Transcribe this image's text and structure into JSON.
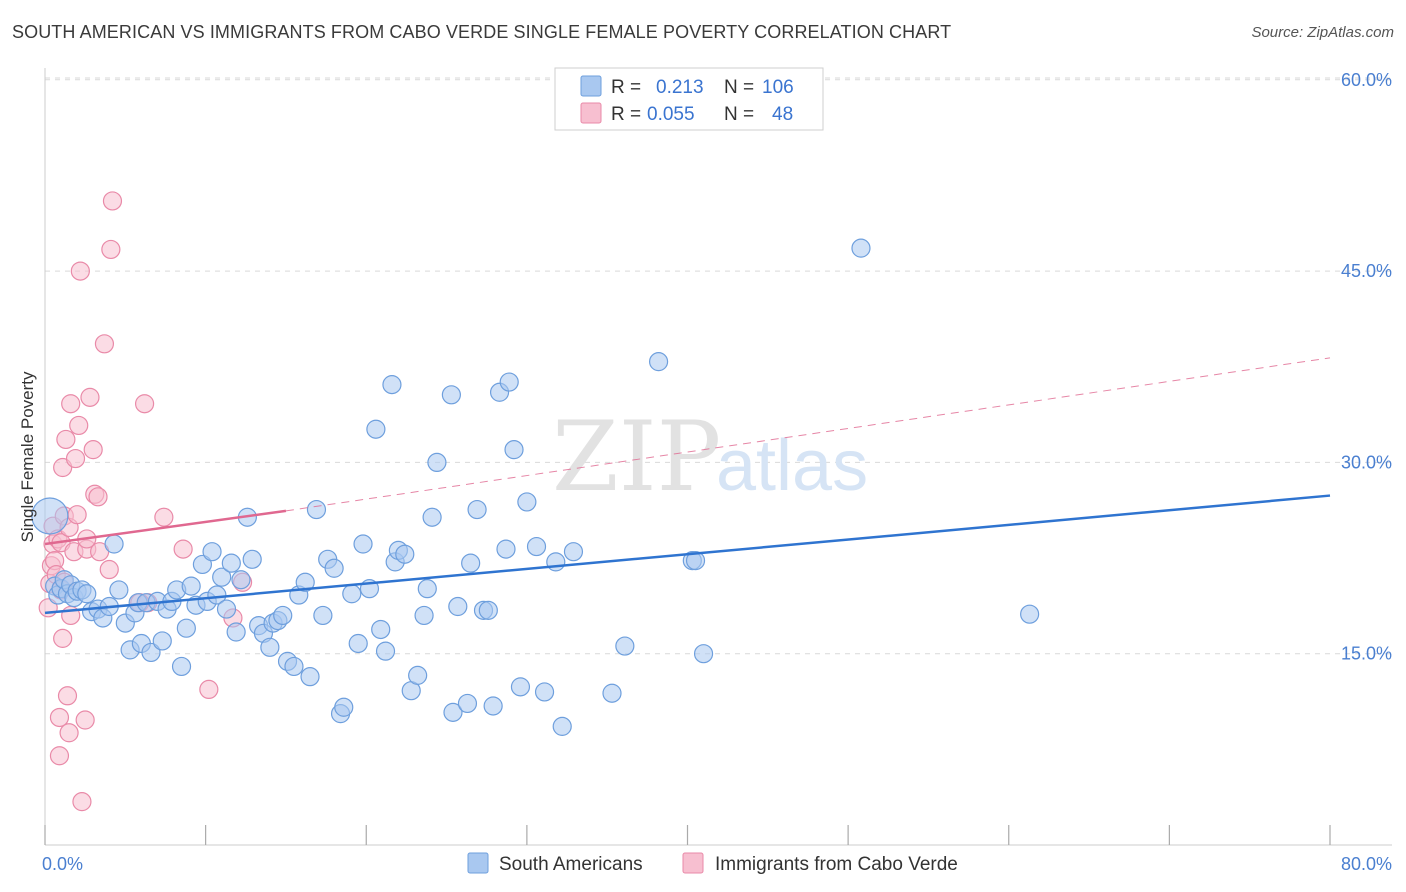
{
  "header": {
    "title": "SOUTH AMERICAN VS IMMIGRANTS FROM CABO VERDE SINGLE FEMALE POVERTY CORRELATION CHART",
    "source": "Source: ZipAtlas.com"
  },
  "watermark": {
    "zip": "ZIP",
    "atlas": "atlas"
  },
  "legend": {
    "r_label": "R =",
    "n_label": "N =",
    "rows": [
      {
        "r": "0.213",
        "n": "106"
      },
      {
        "r": "0.055",
        "n": "48"
      }
    ]
  },
  "colors": {
    "blue_fill": "#a9c8f0",
    "blue_stroke": "#6e9fdd",
    "blue_line": "#2f74d0",
    "pink_fill": "#f7bfd0",
    "pink_stroke": "#e98aa8",
    "pink_line": "#e06890",
    "grid": "#d9d9d9",
    "tick_text": "#4a7fd0"
  },
  "chart_data": {
    "type": "scatter",
    "title": "SOUTH AMERICAN VS IMMIGRANTS FROM CABO VERDE SINGLE FEMALE POVERTY CORRELATION CHART",
    "ylabel": "Single Female Poverty",
    "xlabel": "",
    "xlim": [
      0,
      80
    ],
    "ylim": [
      0,
      62
    ],
    "x_tick_labels": [
      "0.0%",
      "80.0%"
    ],
    "y_ticks": [
      15,
      30,
      45,
      60
    ],
    "y_tick_labels": [
      "15.0%",
      "30.0%",
      "45.0%",
      "60.0%"
    ],
    "grid": true,
    "legend_position": "top-center",
    "series": [
      {
        "name": "South Americans",
        "r": 0.213,
        "n": 106,
        "trend": {
          "x": [
            0,
            80
          ],
          "y": [
            18.2,
            27.4
          ],
          "style": "solid"
        },
        "points": [
          [
            0.3,
            25.8
          ],
          [
            0.6,
            20.3
          ],
          [
            0.8,
            19.6
          ],
          [
            1.0,
            20.1
          ],
          [
            1.2,
            20.8
          ],
          [
            1.4,
            19.7
          ],
          [
            1.6,
            20.4
          ],
          [
            1.8,
            19.4
          ],
          [
            2.0,
            19.9
          ],
          [
            2.3,
            20.0
          ],
          [
            2.6,
            19.7
          ],
          [
            2.9,
            18.3
          ],
          [
            3.3,
            18.5
          ],
          [
            3.6,
            17.8
          ],
          [
            4.0,
            18.7
          ],
          [
            4.3,
            23.6
          ],
          [
            4.6,
            20.0
          ],
          [
            5.0,
            17.4
          ],
          [
            5.3,
            15.3
          ],
          [
            5.6,
            18.2
          ],
          [
            5.8,
            19.0
          ],
          [
            6.0,
            15.8
          ],
          [
            6.3,
            19.0
          ],
          [
            6.6,
            15.1
          ],
          [
            7.0,
            19.1
          ],
          [
            7.3,
            16.0
          ],
          [
            7.6,
            18.5
          ],
          [
            7.9,
            19.1
          ],
          [
            8.2,
            20.0
          ],
          [
            8.5,
            14.0
          ],
          [
            8.8,
            17.0
          ],
          [
            9.1,
            20.3
          ],
          [
            9.4,
            18.8
          ],
          [
            9.8,
            22.0
          ],
          [
            10.1,
            19.1
          ],
          [
            10.4,
            23.0
          ],
          [
            10.7,
            19.6
          ],
          [
            11.0,
            21.0
          ],
          [
            11.3,
            18.5
          ],
          [
            11.6,
            22.1
          ],
          [
            11.9,
            16.7
          ],
          [
            12.2,
            20.8
          ],
          [
            12.6,
            25.7
          ],
          [
            12.9,
            22.4
          ],
          [
            13.3,
            17.2
          ],
          [
            13.6,
            16.6
          ],
          [
            14.0,
            15.5
          ],
          [
            14.2,
            17.4
          ],
          [
            14.5,
            17.6
          ],
          [
            14.8,
            18.0
          ],
          [
            15.1,
            14.4
          ],
          [
            15.5,
            14.0
          ],
          [
            15.8,
            19.6
          ],
          [
            16.2,
            20.6
          ],
          [
            16.5,
            13.2
          ],
          [
            16.9,
            26.3
          ],
          [
            17.3,
            18.0
          ],
          [
            17.6,
            22.4
          ],
          [
            18.0,
            21.7
          ],
          [
            18.4,
            10.3
          ],
          [
            18.6,
            10.8
          ],
          [
            19.1,
            19.7
          ],
          [
            19.5,
            15.8
          ],
          [
            19.8,
            23.6
          ],
          [
            20.2,
            20.1
          ],
          [
            20.6,
            32.6
          ],
          [
            20.9,
            16.9
          ],
          [
            21.2,
            15.2
          ],
          [
            21.6,
            36.1
          ],
          [
            21.8,
            22.2
          ],
          [
            22.0,
            23.1
          ],
          [
            22.4,
            22.8
          ],
          [
            22.8,
            12.1
          ],
          [
            23.2,
            13.3
          ],
          [
            23.6,
            18.0
          ],
          [
            23.8,
            20.1
          ],
          [
            24.1,
            25.7
          ],
          [
            24.4,
            30.0
          ],
          [
            25.3,
            35.3
          ],
          [
            25.4,
            10.4
          ],
          [
            25.7,
            18.7
          ],
          [
            26.3,
            11.1
          ],
          [
            26.5,
            22.1
          ],
          [
            26.9,
            26.3
          ],
          [
            27.3,
            18.4
          ],
          [
            27.6,
            18.4
          ],
          [
            27.9,
            10.9
          ],
          [
            28.3,
            35.5
          ],
          [
            28.7,
            23.2
          ],
          [
            28.9,
            36.3
          ],
          [
            29.2,
            31.0
          ],
          [
            29.6,
            12.4
          ],
          [
            30.0,
            26.9
          ],
          [
            30.6,
            23.4
          ],
          [
            31.1,
            12.0
          ],
          [
            31.8,
            22.2
          ],
          [
            32.2,
            9.3
          ],
          [
            32.9,
            23.0
          ],
          [
            35.3,
            11.9
          ],
          [
            36.1,
            15.6
          ],
          [
            38.2,
            37.9
          ],
          [
            40.3,
            22.3
          ],
          [
            40.5,
            22.3
          ],
          [
            41.0,
            15.0
          ],
          [
            50.8,
            46.8
          ],
          [
            61.3,
            18.1
          ]
        ]
      },
      {
        "name": "Immigrants from Cabo Verde",
        "r": 0.055,
        "n": 48,
        "trend": {
          "x": [
            0,
            15
          ],
          "y": [
            23.6,
            26.2
          ],
          "style": "solid",
          "dashed_extension": {
            "x": [
              15,
              80
            ],
            "y": [
              26.2,
              38.2
            ]
          }
        },
        "points": [
          [
            0.2,
            18.6
          ],
          [
            0.3,
            20.5
          ],
          [
            0.4,
            21.9
          ],
          [
            0.5,
            23.6
          ],
          [
            0.5,
            25.0
          ],
          [
            0.6,
            22.3
          ],
          [
            0.7,
            21.2
          ],
          [
            0.8,
            24.0
          ],
          [
            0.9,
            10.0
          ],
          [
            0.9,
            7.0
          ],
          [
            1.0,
            23.7
          ],
          [
            1.1,
            16.2
          ],
          [
            1.1,
            29.6
          ],
          [
            1.2,
            25.8
          ],
          [
            1.2,
            20.6
          ],
          [
            1.3,
            31.8
          ],
          [
            1.4,
            11.7
          ],
          [
            1.5,
            8.8
          ],
          [
            1.5,
            24.9
          ],
          [
            1.6,
            34.6
          ],
          [
            1.6,
            18.0
          ],
          [
            1.8,
            23.0
          ],
          [
            1.9,
            30.3
          ],
          [
            2.0,
            25.9
          ],
          [
            2.1,
            32.9
          ],
          [
            2.2,
            45.0
          ],
          [
            2.3,
            3.4
          ],
          [
            2.5,
            9.8
          ],
          [
            2.6,
            23.2
          ],
          [
            2.6,
            24.0
          ],
          [
            2.8,
            35.1
          ],
          [
            3.0,
            31.0
          ],
          [
            3.1,
            27.5
          ],
          [
            3.3,
            27.3
          ],
          [
            3.4,
            23.0
          ],
          [
            3.7,
            39.3
          ],
          [
            4.0,
            21.6
          ],
          [
            4.1,
            46.7
          ],
          [
            4.2,
            50.5
          ],
          [
            6.2,
            34.6
          ],
          [
            6.4,
            19.0
          ],
          [
            7.4,
            25.7
          ],
          [
            8.6,
            23.2
          ],
          [
            10.2,
            12.2
          ],
          [
            11.7,
            17.8
          ],
          [
            12.3,
            20.6
          ],
          [
            5.9,
            19.0
          ],
          [
            1.0,
            20.0
          ]
        ]
      }
    ]
  },
  "bottom_legend": {
    "items": [
      "South Americans",
      "Immigrants from Cabo Verde"
    ]
  }
}
